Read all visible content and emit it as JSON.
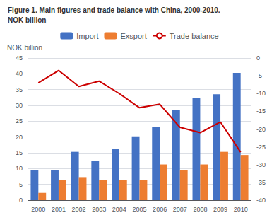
{
  "chart_data": {
    "type": "bar",
    "title": "Figure 1. Main figures and trade balance with China, 2000-2010.",
    "subtitle": "NOK billion",
    "ylabel": "NOK billion",
    "categories": [
      "2000",
      "2001",
      "2002",
      "2003",
      "2004",
      "2005",
      "2006",
      "2007",
      "2008",
      "2009",
      "2010"
    ],
    "series": [
      {
        "name": "Import",
        "type": "bar",
        "color": "#4472C4",
        "values": [
          9.5,
          9.5,
          15.3,
          12.5,
          16.3,
          20.2,
          23.3,
          28.5,
          32.3,
          33.5,
          40.3
        ]
      },
      {
        "name": "Exsport",
        "type": "bar",
        "color": "#ED7D31",
        "values": [
          2.3,
          6.3,
          7.3,
          6.3,
          6.3,
          6.3,
          11.3,
          9.5,
          11.3,
          15.3,
          14.3
        ]
      },
      {
        "name": "Trade balance",
        "type": "line",
        "axis": "y2",
        "color": "#CC0000",
        "values": [
          -7.0,
          -3.5,
          -8.0,
          -6.5,
          -10.0,
          -14.0,
          -13.0,
          -19.5,
          -21.0,
          -18.0,
          -26.5
        ]
      }
    ],
    "ylim": [
      0,
      45
    ],
    "yticks": [
      0,
      5,
      10,
      15,
      20,
      25,
      30,
      35,
      40,
      45
    ],
    "y2lim": [
      -40,
      0
    ],
    "y2ticks": [
      -40,
      -35,
      -30,
      -25,
      -20,
      -15,
      -10,
      -5,
      0
    ],
    "grid": true,
    "legend": "top"
  }
}
